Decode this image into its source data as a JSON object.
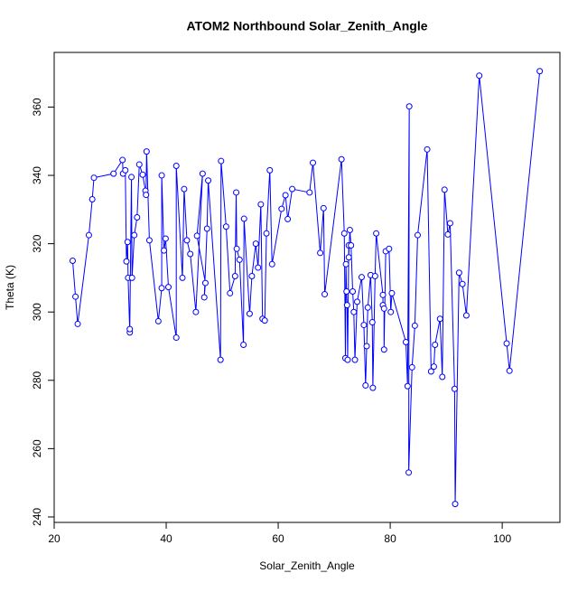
{
  "chart_data": {
    "type": "line",
    "markers": "open-circle",
    "title": "ATOM2 Northbound Solar_Zenith_Angle",
    "x_label": "Solar_Zenith_Angle",
    "y_label": "Theta (K)",
    "color": "#0000ff",
    "grid": false,
    "xlim": [
      20,
      110.3
    ],
    "ylim": [
      238.4,
      376
    ],
    "xticks": [
      20,
      40,
      60,
      80,
      100
    ],
    "yticks": [
      240,
      260,
      280,
      300,
      320,
      340,
      360
    ],
    "x": [
      23.3,
      23.8,
      24.2,
      26.2,
      26.8,
      27.1,
      30.6,
      32.2,
      32.3,
      32.7,
      32.9,
      33.1,
      33.2,
      33.5,
      33.5,
      33.8,
      33.9,
      34.3,
      34.8,
      35.2,
      35.8,
      36.3,
      36.4,
      36.5,
      37.0,
      38.6,
      39.2,
      39.2,
      39.6,
      39.9,
      40.4,
      41.8,
      41.8,
      42.9,
      43.2,
      43.7,
      44.3,
      45.3,
      46.5,
      45.5,
      47,
      46.8,
      47.3,
      47.5,
      49.7,
      49.8,
      50.7,
      51.4,
      52.3,
      52.5,
      52.6,
      53.1,
      53.8,
      53.9,
      54.9,
      55.3,
      56,
      56.4,
      56.9,
      57.2,
      57.6,
      57.9,
      58.5,
      58.9,
      60.6,
      61.3,
      61.7,
      62.5,
      65.6,
      66.2,
      67.5,
      68.1,
      68.3,
      71.3,
      71.8,
      72,
      72.1,
      72.2,
      72.3,
      72.4,
      72.6,
      72.6,
      72.8,
      73,
      73.3,
      73.5,
      73.7,
      74.1,
      74.9,
      75.3,
      75.6,
      75.8,
      76,
      76.5,
      76.8,
      76.9,
      77.3,
      77.5,
      78.7,
      78.7,
      78.9,
      78.9,
      79.2,
      79.8,
      80.1,
      80.3,
      82.8,
      83.1,
      83.4,
      83.3,
      83.9,
      84.4,
      84.9,
      86.6,
      87.3,
      87.8,
      88,
      88.9,
      89.3,
      89.7,
      90.3,
      90.7,
      91.5,
      91.6,
      92.3,
      92.9,
      93.6,
      95.9,
      100.8,
      101.3,
      106.7
    ],
    "values": [
      315,
      304.5,
      296.5,
      322.5,
      333,
      339.3,
      340.5,
      344.5,
      340.5,
      341.5,
      314.8,
      320.5,
      310,
      294,
      295,
      339.5,
      310,
      322.5,
      327.7,
      343.2,
      340.2,
      335.5,
      334.3,
      347,
      321,
      297.3,
      307,
      340,
      318,
      321.5,
      307.3,
      292.5,
      342.8,
      310,
      336,
      321,
      317,
      300,
      340.5,
      322.3,
      308.5,
      304.3,
      324.4,
      338.5,
      286,
      344.2,
      325,
      305.5,
      310.5,
      335,
      318.5,
      315.3,
      290.4,
      327.3,
      299.5,
      310.5,
      320,
      313,
      331.5,
      298,
      297.5,
      323,
      341.5,
      314,
      330.2,
      334.2,
      327.2,
      336,
      335,
      343.7,
      317.3,
      330.4,
      305.2,
      344.7,
      323,
      286.5,
      314,
      306,
      302,
      286,
      319.5,
      316,
      324,
      319.5,
      306,
      300,
      286,
      303,
      310.2,
      296.2,
      278.5,
      290,
      301.3,
      310.8,
      297,
      277.8,
      310.5,
      323,
      305,
      302,
      301,
      289,
      317.8,
      318.5,
      300,
      305.5,
      291.2,
      278.3,
      360.2,
      253,
      283.8,
      296,
      322.5,
      347.6,
      282.6,
      284,
      290.4,
      298,
      281,
      335.8,
      322.7,
      326,
      277.5,
      243.8,
      311.5,
      308.2,
      299,
      369.2,
      290.8,
      282.8,
      370.5
    ]
  }
}
